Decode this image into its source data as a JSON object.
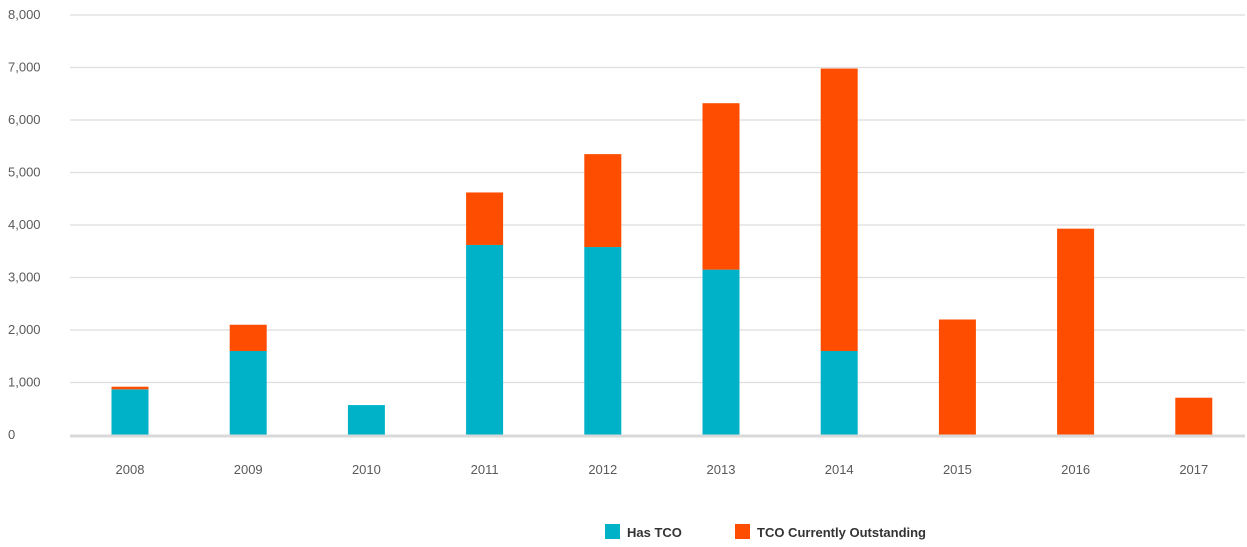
{
  "chart_data": {
    "type": "bar",
    "stacked": true,
    "title": "",
    "xlabel": "",
    "ylabel": "",
    "categories": [
      "2008",
      "2009",
      "2010",
      "2011",
      "2012",
      "2013",
      "2014",
      "2015",
      "2016",
      "2017"
    ],
    "series": [
      {
        "name": "Has TCO",
        "color": "#00b2c8",
        "values": [
          870,
          1600,
          570,
          3620,
          3580,
          3150,
          1600,
          0,
          0,
          0
        ]
      },
      {
        "name": "TCO Currently Outstanding",
        "color": "#ff4d00",
        "values": [
          50,
          500,
          0,
          1000,
          1770,
          3170,
          5380,
          2200,
          3930,
          710
        ]
      }
    ],
    "ylim": [
      0,
      8000
    ],
    "yticks": [
      0,
      1000,
      2000,
      3000,
      4000,
      5000,
      6000,
      7000,
      8000
    ],
    "ytick_labels": [
      "0",
      "1,000",
      "2,000",
      "3,000",
      "4,000",
      "5,000",
      "6,000",
      "7,000",
      "8,000"
    ],
    "grid": "horizontal",
    "legend_position": "bottom-center"
  }
}
